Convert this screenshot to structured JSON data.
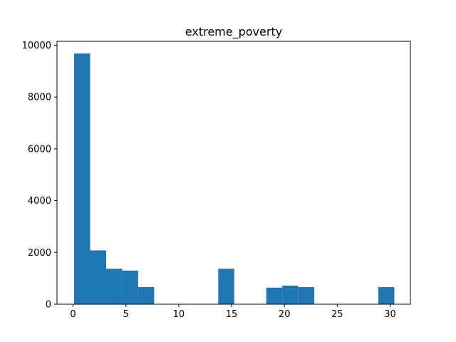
{
  "chart_data": {
    "type": "bar",
    "title": "extreme_poverty",
    "xlabel": "",
    "ylabel": "",
    "xlim": [
      -1.52,
      31.92
    ],
    "ylim": [
      0,
      10150
    ],
    "grid": false,
    "legend": "none",
    "bar_color": "#1f77b4",
    "bins": [
      {
        "x0": 0.1,
        "x1": 1.615,
        "count": 9680
      },
      {
        "x0": 1.615,
        "x1": 3.13,
        "count": 2080
      },
      {
        "x0": 3.13,
        "x1": 4.645,
        "count": 1370
      },
      {
        "x0": 4.645,
        "x1": 6.16,
        "count": 1300
      },
      {
        "x0": 6.16,
        "x1": 7.675,
        "count": 660
      },
      {
        "x0": 7.675,
        "x1": 9.19,
        "count": 0
      },
      {
        "x0": 9.19,
        "x1": 10.705,
        "count": 0
      },
      {
        "x0": 10.705,
        "x1": 12.22,
        "count": 0
      },
      {
        "x0": 12.22,
        "x1": 13.735,
        "count": 0
      },
      {
        "x0": 13.735,
        "x1": 15.25,
        "count": 1370
      },
      {
        "x0": 15.25,
        "x1": 16.765,
        "count": 0
      },
      {
        "x0": 16.765,
        "x1": 18.28,
        "count": 0
      },
      {
        "x0": 18.28,
        "x1": 19.795,
        "count": 640
      },
      {
        "x0": 19.795,
        "x1": 21.31,
        "count": 720
      },
      {
        "x0": 21.31,
        "x1": 22.825,
        "count": 660
      },
      {
        "x0": 22.825,
        "x1": 24.34,
        "count": 0
      },
      {
        "x0": 24.34,
        "x1": 25.855,
        "count": 0
      },
      {
        "x0": 25.855,
        "x1": 27.37,
        "count": 0
      },
      {
        "x0": 27.37,
        "x1": 28.885,
        "count": 0
      },
      {
        "x0": 28.885,
        "x1": 30.4,
        "count": 660
      }
    ],
    "xticks": [
      {
        "value": 0,
        "label": "0"
      },
      {
        "value": 5,
        "label": "5"
      },
      {
        "value": 10,
        "label": "10"
      },
      {
        "value": 15,
        "label": "15"
      },
      {
        "value": 20,
        "label": "20"
      },
      {
        "value": 25,
        "label": "25"
      },
      {
        "value": 30,
        "label": "30"
      }
    ],
    "yticks": [
      {
        "value": 0,
        "label": "0"
      },
      {
        "value": 2000,
        "label": "2000"
      },
      {
        "value": 4000,
        "label": "4000"
      },
      {
        "value": 6000,
        "label": "6000"
      },
      {
        "value": 8000,
        "label": "8000"
      },
      {
        "value": 10000,
        "label": "10000"
      }
    ]
  }
}
